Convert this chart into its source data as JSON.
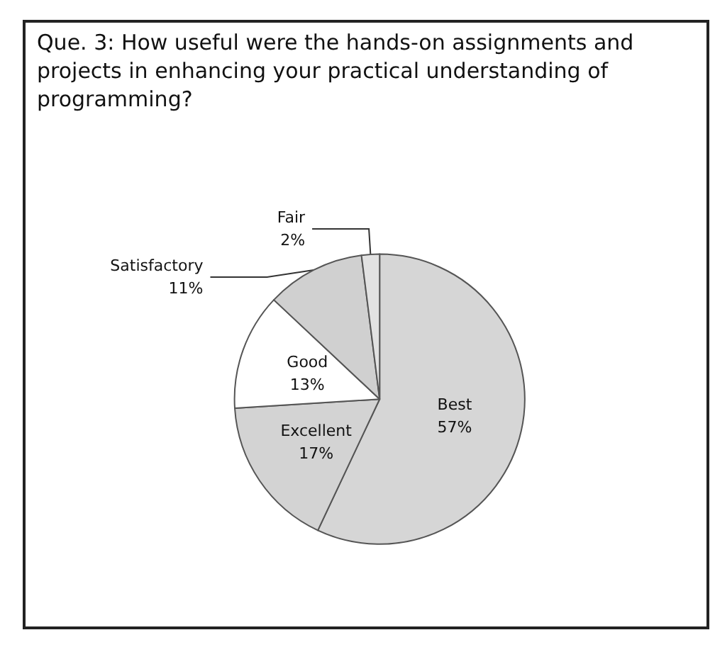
{
  "chart_data": {
    "type": "pie",
    "title": "Que. 3: How useful were the hands-on assignments and projects in enhancing your practical understanding of programming?",
    "categories": [
      "Best",
      "Excellent",
      "Good",
      "Satisfactory",
      "Fair"
    ],
    "values": [
      57,
      17,
      13,
      11,
      2
    ],
    "value_labels": [
      "57%",
      "17%",
      "13%",
      "11%",
      "2%"
    ],
    "colors": [
      "#d6d6d6",
      "#d3d3d3",
      "#ffffff",
      "#d0d0d0",
      "#e2e2e2"
    ],
    "legend": false
  }
}
